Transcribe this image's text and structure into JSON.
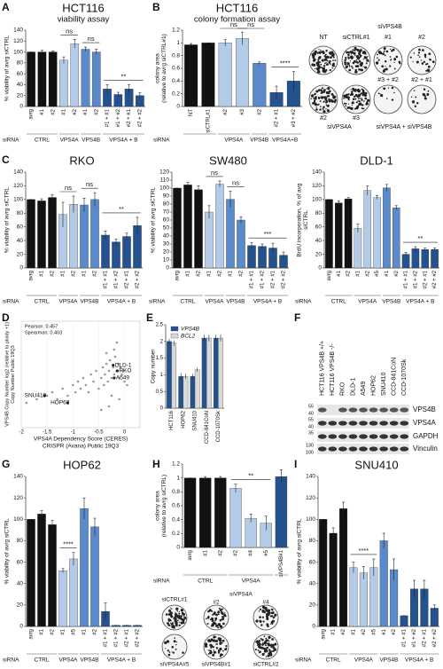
{
  "chart_data": [
    {
      "type": "bar",
      "panel": "A",
      "title": "HCT116",
      "subtitle": "viability assay",
      "ylabel": "% viability of avrg siCTRL",
      "xlabel": "siRNA",
      "ylim": [
        0,
        140
      ],
      "yticks": [
        0,
        20,
        40,
        60,
        80,
        100,
        120,
        140
      ],
      "categories": [
        "avrg",
        "#1",
        "#2",
        "#1",
        "#2",
        "#1",
        "#2",
        "#1 + #1",
        "#1 + #2",
        "#2 + #1",
        "#2 + #2"
      ],
      "values": [
        100,
        100,
        100,
        85,
        115,
        105,
        100,
        32,
        22,
        32,
        20
      ],
      "errors": [
        0,
        3,
        2,
        6,
        8,
        4,
        5,
        8,
        4,
        8,
        5
      ],
      "groups": [
        {
          "label": "CTRL",
          "count": 3,
          "color": "#111111"
        },
        {
          "label": "VPS4A",
          "count": 2,
          "color": "#b4cbe8"
        },
        {
          "label": "VPS4B",
          "count": 2,
          "color": "#5a8acb"
        },
        {
          "label": "VPS4A + B",
          "count": 4,
          "color": "#24528f"
        }
      ],
      "significance": [
        {
          "label": "ns",
          "bars": [
            3,
            4
          ]
        },
        {
          "label": "ns",
          "bars": [
            5,
            6
          ]
        },
        {
          "label": "**",
          "bars": [
            7,
            10
          ]
        }
      ]
    },
    {
      "type": "bar",
      "panel": "B",
      "title": "HCT116",
      "subtitle": "colony formation assay",
      "ylabel": [
        "colony area",
        "(relative to avrg siCTRL#1)"
      ],
      "xlabel": "siRNA",
      "ylim": [
        0,
        1.2
      ],
      "yticks": [
        0,
        0.2,
        0.4,
        0.6,
        0.8,
        1,
        1.2
      ],
      "categories": [
        "NT",
        "siCTRL#1",
        "#2",
        "#3",
        "#2",
        "#2 + #1",
        "#3 + #2"
      ],
      "values": [
        0.97,
        1.0,
        1.0,
        1.07,
        0.68,
        0.22,
        0.4
      ],
      "errors": [
        0.02,
        0,
        0.05,
        0.1,
        0.02,
        0.1,
        0.15
      ],
      "groups": [
        {
          "count": 2,
          "color": "#111111"
        },
        {
          "label": "VPS4A",
          "count": 2,
          "color": "#b4cbe8"
        },
        {
          "label": "VPS4B",
          "count": 1,
          "color": "#5a8acb"
        },
        {
          "label": "VPS4A+B",
          "count": 2,
          "color": "#24528f"
        }
      ],
      "significance": [
        {
          "label": "ns",
          "bars": [
            2,
            3
          ]
        },
        {
          "label": "ns",
          "bars": [
            3,
            4
          ]
        },
        {
          "label": "****",
          "bars": [
            5,
            6
          ]
        }
      ]
    },
    {
      "type": "bar",
      "panel": "C",
      "title": "RKO",
      "ylabel": "% viability of avrg siCTRL",
      "xlabel": "siRNA",
      "ylim": [
        0,
        140
      ],
      "yticks": [
        0,
        20,
        40,
        60,
        80,
        100,
        120,
        140
      ],
      "categories": [
        "avrg",
        "#1",
        "#2",
        "#1",
        "#2",
        "#1",
        "#2",
        "#1 + #1",
        "#1 + #2",
        "#2 + #1",
        "#2 + #2"
      ],
      "values": [
        100,
        98,
        103,
        78,
        93,
        92,
        100,
        48,
        38,
        46,
        62
      ],
      "errors": [
        0,
        3,
        4,
        18,
        12,
        10,
        10,
        6,
        4,
        5,
        12
      ],
      "groups": [
        {
          "label": "CTRL",
          "count": 3,
          "color": "#111111"
        },
        {
          "label": "VPS4A",
          "count": 2,
          "color": "#b4cbe8"
        },
        {
          "label": "VPS4B",
          "count": 2,
          "color": "#5a8acb"
        },
        {
          "label": "VPS4A + B",
          "count": 4,
          "color": "#24528f"
        }
      ],
      "significance": [
        {
          "label": "ns",
          "bars": [
            3,
            4
          ]
        },
        {
          "label": "ns",
          "bars": [
            5,
            6
          ]
        },
        {
          "label": "**",
          "bars": [
            7,
            10
          ]
        }
      ]
    },
    {
      "type": "bar",
      "title": "SW480",
      "ylabel": "% viability of avrg siCTRL",
      "xlabel": "siRNA",
      "ylim": [
        0,
        120
      ],
      "yticks": [
        0,
        10,
        20,
        30,
        40,
        50,
        60,
        70,
        80,
        90,
        100,
        110,
        120
      ],
      "categories": [
        "avrg",
        "#1",
        "#2",
        "#1",
        "#2",
        "#1",
        "#2",
        "#1 + #1",
        "#1 + #2",
        "#2 + #1",
        "#2 + #2"
      ],
      "values": [
        100,
        104,
        98,
        70,
        105,
        86,
        60,
        28,
        27,
        25,
        16
      ],
      "errors": [
        0,
        3,
        5,
        8,
        4,
        10,
        4,
        4,
        3,
        6,
        4
      ],
      "groups": [
        {
          "label": "CTRL",
          "count": 3,
          "color": "#111111"
        },
        {
          "label": "VPS4A",
          "count": 2,
          "color": "#b4cbe8"
        },
        {
          "label": "VPS4B",
          "count": 2,
          "color": "#5a8acb"
        },
        {
          "label": "VPS4A + B",
          "count": 4,
          "color": "#24528f"
        }
      ],
      "significance": [
        {
          "label": "ns",
          "bars": [
            3,
            4
          ]
        },
        {
          "label": "ns",
          "bars": [
            5,
            6
          ]
        },
        {
          "label": "***",
          "bars": [
            7,
            10
          ]
        }
      ]
    },
    {
      "type": "bar",
      "title": "DLD-1",
      "ylabel": [
        "BrdU incorporation, % of avg",
        "siCTRL"
      ],
      "xlabel": "siRNA",
      "ylim": [
        0,
        140
      ],
      "yticks": [
        0,
        20,
        40,
        60,
        80,
        100,
        120,
        140
      ],
      "categories": [
        "avrg",
        "#1",
        "#2",
        "#1",
        "#2",
        "#5",
        "#1",
        "#2",
        "#1 + #1",
        "#1 + #2",
        "#2 + #1",
        "#2 + #2"
      ],
      "values": [
        100,
        95,
        101,
        58,
        113,
        103,
        117,
        88,
        20,
        28,
        27,
        27
      ],
      "errors": [
        0,
        3,
        2,
        6,
        7,
        3,
        5,
        3,
        3,
        3,
        2,
        2
      ],
      "groups": [
        {
          "label": "CTRL",
          "count": 3,
          "color": "#111111"
        },
        {
          "label": "VPS4A",
          "count": 3,
          "color": "#b4cbe8"
        },
        {
          "label": "VPS4B",
          "count": 2,
          "color": "#5a8acb"
        },
        {
          "label": "VPS4A + B",
          "count": 4,
          "color": "#24528f"
        }
      ],
      "significance": [
        {
          "label": "**",
          "bars": [
            8,
            11
          ]
        }
      ]
    },
    {
      "type": "scatter",
      "panel": "D",
      "xlabel": [
        "VPS4A Dependency Score (CERES)",
        "CRISPR (Avana) Public 19Q3"
      ],
      "ylabel": [
        "VPS4B Copy Number log2 (relative to ploidy +1)",
        "Copy Number Public 19Q3"
      ],
      "annotations": [
        "Pearson: 0.457",
        "Spearman: 0.403"
      ],
      "color": "#9a9a9a",
      "xlim": [
        -2,
        0.3
      ],
      "xticks": [
        -2,
        -1.5,
        -1,
        -0.5,
        0
      ],
      "ylim": [
        0.5,
        2
      ],
      "x": [
        -1.9,
        -1.7,
        -1.5,
        -1.4,
        -1.3,
        -1.2,
        -1.1,
        -1.0,
        -0.95,
        -0.9,
        -0.85,
        -0.8,
        -0.75,
        -0.7,
        -0.65,
        -0.6,
        -0.55,
        -0.5,
        -0.45,
        -0.42,
        -0.4,
        -0.38,
        -0.35,
        -0.32,
        -0.3,
        -0.28,
        -0.25,
        -0.22,
        -0.2,
        -0.18,
        -0.15,
        -0.12,
        -0.1,
        -0.08,
        -0.05,
        -0.02,
        0.0,
        0.05,
        -0.3,
        -0.25,
        -0.2,
        -0.15,
        -0.1,
        -0.35,
        -0.45
      ],
      "y": [
        0.85,
        0.9,
        0.95,
        1.0,
        0.9,
        1.05,
        0.95,
        1.1,
        1.0,
        1.15,
        1.05,
        1.2,
        1.1,
        1.0,
        1.25,
        1.15,
        1.3,
        1.05,
        1.2,
        1.35,
        1.1,
        1.25,
        1.4,
        1.15,
        1.3,
        1.45,
        1.2,
        1.35,
        1.25,
        1.5,
        1.3,
        1.4,
        1.2,
        1.35,
        1.25,
        1.3,
        1.15,
        1.1,
        0.8,
        0.95,
        1.6,
        1.7,
        0.9,
        1.55,
        0.75
      ],
      "labeled_points": {
        "names": [
          "DLD-1",
          "RKO",
          "A549",
          "SNU410",
          "HOP62"
        ],
        "x": [
          -0.22,
          -0.14,
          -0.2,
          -1.55,
          -1.1
        ],
        "y": [
          1.38,
          1.3,
          1.2,
          0.95,
          0.85
        ]
      }
    },
    {
      "type": "grouped_bar",
      "panel": "E",
      "ylabel": "Copy number",
      "ylim": [
        0,
        2.5
      ],
      "yticks": [
        0,
        0.5,
        1,
        1.5,
        2,
        2.5
      ],
      "categories": [
        "HCT116",
        "HOP62",
        "SNU410",
        "CCD-841CoN",
        "CCD-1070Sk"
      ],
      "series": [
        {
          "name": "VPS4B",
          "color": "#24528f",
          "values": [
            2.0,
            0.95,
            0.95,
            2.1,
            2.1
          ],
          "errors": [
            0.08,
            0.1,
            0.08,
            0.1,
            0.1
          ]
        },
        {
          "name": "BCL2",
          "color": "#d9d9d9",
          "values": [
            1.95,
            0.95,
            1.15,
            2.1,
            2.1
          ],
          "errors": [
            0.08,
            0.08,
            0.06,
            0.1,
            0.1
          ]
        }
      ]
    },
    {
      "type": "bar",
      "panel": "G",
      "title": "HOP62",
      "ylabel": "% viability of avrg siCTRL",
      "xlabel": "siRNA",
      "ylim": [
        0,
        140
      ],
      "yticks": [
        0,
        20,
        40,
        60,
        80,
        100,
        120,
        140
      ],
      "categories": [
        "avrg",
        "#1",
        "#2",
        "#1",
        "#5",
        "#1",
        "#2",
        "#1 + #1",
        "#1 + #2",
        "#2 + #1",
        "#2 + #2"
      ],
      "values": [
        100,
        105,
        95,
        52,
        63,
        110,
        93,
        14,
        1,
        1,
        1
      ],
      "errors": [
        0,
        3,
        4,
        2,
        6,
        10,
        8,
        8,
        0,
        0,
        0
      ],
      "groups": [
        {
          "label": "CTRL",
          "count": 3,
          "color": "#111111"
        },
        {
          "label": "VPS4A",
          "count": 2,
          "color": "#b4cbe8"
        },
        {
          "label": "VPS4B",
          "count": 2,
          "color": "#5a8acb"
        },
        {
          "label": "VPS4A + B",
          "count": 4,
          "color": "#24528f"
        }
      ],
      "significance": [
        {
          "label": "****",
          "bars": [
            3,
            4
          ]
        }
      ]
    },
    {
      "type": "bar",
      "panel": "H",
      "ylabel": [
        "colony area",
        "(relative to avrg siCTRL)"
      ],
      "xlabel": "siRNA",
      "ylim": [
        0,
        1.2
      ],
      "yticks": [
        0,
        0.2,
        0.4,
        0.6,
        0.8,
        1,
        1.2
      ],
      "categories": [
        "avrg",
        "#1",
        "#2",
        "#2",
        "#4",
        "#5",
        "siVPS4B#1"
      ],
      "values": [
        1,
        1,
        1,
        0.85,
        0.42,
        0.35,
        1.02
      ],
      "errors": [
        0,
        0.02,
        0.02,
        0.06,
        0.06,
        0.1,
        0.1
      ],
      "groups": [
        {
          "label": "CTRL",
          "count": 3,
          "color": "#111111"
        },
        {
          "label": "VPS4A",
          "count": 3,
          "color": "#b4cbe8"
        },
        {
          "count": 1,
          "color": "#24528f"
        }
      ],
      "significance": [
        {
          "label": "**",
          "bars": [
            3,
            5
          ]
        }
      ]
    },
    {
      "type": "bar",
      "panel": "I",
      "title": "SNU410",
      "ylabel": "% viability of avrg siCTRL",
      "xlabel": "siRNA",
      "ylim": [
        0,
        140
      ],
      "yticks": [
        0,
        20,
        40,
        60,
        80,
        100,
        120,
        140
      ],
      "categories": [
        "avrg",
        "#1",
        "#2",
        "#1",
        "#2",
        "#5",
        "#1",
        "#2",
        "#1 + #1",
        "#1 + #2",
        "#2 + #1",
        "#2 + #2"
      ],
      "values": [
        100,
        87,
        110,
        55,
        50,
        55,
        80,
        53,
        10,
        35,
        35,
        17
      ],
      "errors": [
        0,
        5,
        6,
        5,
        6,
        8,
        7,
        10,
        0,
        8,
        8,
        3
      ],
      "groups": [
        {
          "label": "CTRL",
          "count": 3,
          "color": "#111111"
        },
        {
          "label": "VPS4A",
          "count": 3,
          "color": "#b4cbe8"
        },
        {
          "label": "VPS4B",
          "count": 2,
          "color": "#5a8acb"
        },
        {
          "label": "VPS4A + B",
          "count": 4,
          "color": "#24528f"
        }
      ],
      "significance": [
        {
          "label": "****",
          "bars": [
            3,
            5
          ]
        }
      ]
    }
  ],
  "blot": {
    "panel": "F",
    "columns": [
      "HCT116 VPS4B +/+",
      "HCT116 VPS4B -/-",
      "RKO",
      "DLD-1",
      "A549",
      "HOP62",
      "SNU410",
      "CCD-841CoN",
      "CCD-1070Sk"
    ],
    "rows": [
      {
        "label": "VPS4B",
        "markers": [
          55,
          40
        ]
      },
      {
        "label": "VPS4A",
        "markers": [
          55,
          40
        ]
      },
      {
        "label": "GAPDH",
        "markers": [
          35
        ]
      },
      {
        "label": "Vinculin",
        "markers": [
          130,
          100
        ]
      }
    ]
  },
  "colony_B": {
    "labels": [
      "siVPS4B",
      "NT",
      "siCTRL#1",
      "#1",
      "#2",
      "#3 + #2",
      "#2 + #1",
      "#2",
      "#3",
      "siVPS4A",
      "siVPS4A + siVPS4B"
    ]
  },
  "colony_H": {
    "labels": [
      "siCTRL#1",
      "siVPS4A",
      "#2",
      "#4",
      "siVPS4A#5",
      "siVPS4B#1",
      "siCTRL#2"
    ]
  }
}
